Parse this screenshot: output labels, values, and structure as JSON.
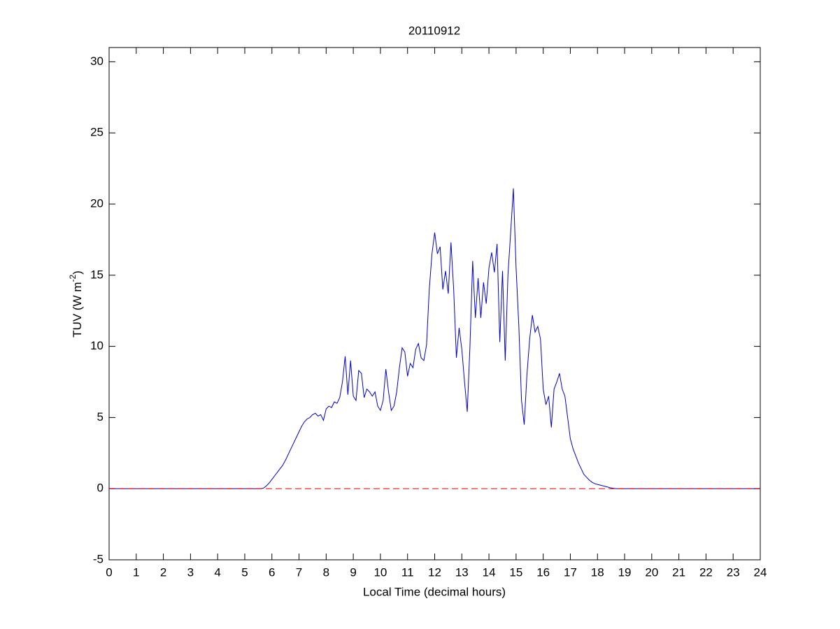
{
  "chart_data": {
    "type": "line",
    "title": "20110912",
    "xlabel": "Local Time (decimal hours)",
    "ylabel": {
      "text": "TUV (W m",
      "superscript": "-2",
      "suffix": ")"
    },
    "x": [
      0,
      5.5,
      5.6,
      5.7,
      5.8,
      5.9,
      6.0,
      6.1,
      6.2,
      6.3,
      6.4,
      6.5,
      6.6,
      6.7,
      6.8,
      6.9,
      7.0,
      7.1,
      7.2,
      7.3,
      7.4,
      7.5,
      7.6,
      7.7,
      7.8,
      7.9,
      8.0,
      8.1,
      8.2,
      8.3,
      8.4,
      8.5,
      8.6,
      8.7,
      8.8,
      8.9,
      9.0,
      9.1,
      9.2,
      9.3,
      9.4,
      9.5,
      9.6,
      9.7,
      9.8,
      9.9,
      10.0,
      10.1,
      10.2,
      10.3,
      10.4,
      10.5,
      10.6,
      10.7,
      10.8,
      10.9,
      11.0,
      11.1,
      11.2,
      11.3,
      11.4,
      11.5,
      11.6,
      11.7,
      11.8,
      11.9,
      12.0,
      12.1,
      12.2,
      12.3,
      12.4,
      12.5,
      12.6,
      12.7,
      12.8,
      12.9,
      13.0,
      13.1,
      13.2,
      13.3,
      13.4,
      13.5,
      13.6,
      13.7,
      13.8,
      13.9,
      14.0,
      14.1,
      14.2,
      14.3,
      14.4,
      14.5,
      14.6,
      14.7,
      14.8,
      14.9,
      15.0,
      15.1,
      15.2,
      15.3,
      15.4,
      15.5,
      15.6,
      15.7,
      15.8,
      15.9,
      16.0,
      16.1,
      16.2,
      16.3,
      16.4,
      16.5,
      16.6,
      16.7,
      16.8,
      16.9,
      17.0,
      17.1,
      17.2,
      17.3,
      17.4,
      17.5,
      17.6,
      17.7,
      17.8,
      17.9,
      18.0,
      18.1,
      18.2,
      18.3,
      18.4,
      18.5,
      18.6,
      18.7,
      24
    ],
    "series": [
      {
        "name": "TUV",
        "color": "#0000cc",
        "values": [
          0,
          0,
          0,
          0.05,
          0.2,
          0.4,
          0.65,
          0.9,
          1.15,
          1.4,
          1.65,
          2.0,
          2.4,
          2.8,
          3.2,
          3.6,
          4.0,
          4.4,
          4.7,
          4.9,
          5.0,
          5.2,
          5.3,
          5.1,
          5.2,
          4.8,
          5.6,
          5.8,
          5.7,
          6.1,
          6.0,
          6.4,
          7.5,
          9.3,
          6.6,
          9.0,
          6.5,
          6.2,
          8.3,
          8.1,
          6.4,
          7.0,
          6.8,
          6.5,
          6.8,
          5.8,
          5.5,
          6.2,
          8.4,
          6.8,
          5.5,
          5.8,
          6.8,
          8.5,
          9.9,
          9.6,
          7.9,
          8.8,
          8.5,
          9.8,
          10.2,
          9.2,
          9.0,
          10.1,
          14.0,
          16.5,
          18.0,
          16.5,
          17.0,
          14.0,
          15.3,
          13.7,
          17.3,
          14.0,
          9.2,
          11.3,
          9.8,
          7.5,
          5.4,
          10.0,
          16.0,
          12.0,
          14.8,
          12.0,
          14.5,
          13.0,
          15.5,
          16.6,
          15.2,
          17.2,
          10.3,
          15.3,
          9.0,
          15.0,
          18.0,
          21.1,
          15.5,
          11.5,
          6.2,
          4.5,
          8.0,
          10.5,
          12.2,
          11.0,
          11.4,
          10.5,
          7.0,
          5.9,
          6.5,
          4.3,
          7.0,
          7.5,
          8.1,
          7.0,
          6.5,
          5.0,
          3.5,
          2.8,
          2.3,
          1.8,
          1.4,
          1.0,
          0.8,
          0.6,
          0.45,
          0.35,
          0.3,
          0.25,
          0.2,
          0.15,
          0.1,
          0.05,
          0.02,
          0,
          0
        ]
      }
    ],
    "reference_line": {
      "value": 0,
      "color": "#ff0000",
      "style": "dashed"
    },
    "xlim": [
      0,
      24
    ],
    "xticks": [
      0,
      1,
      2,
      3,
      4,
      5,
      6,
      7,
      8,
      9,
      10,
      11,
      12,
      13,
      14,
      15,
      16,
      17,
      18,
      19,
      20,
      21,
      22,
      23,
      24
    ],
    "ylim": [
      -5,
      31
    ],
    "yticks": [
      -5,
      0,
      5,
      10,
      15,
      20,
      25,
      30
    ],
    "grid": false
  }
}
